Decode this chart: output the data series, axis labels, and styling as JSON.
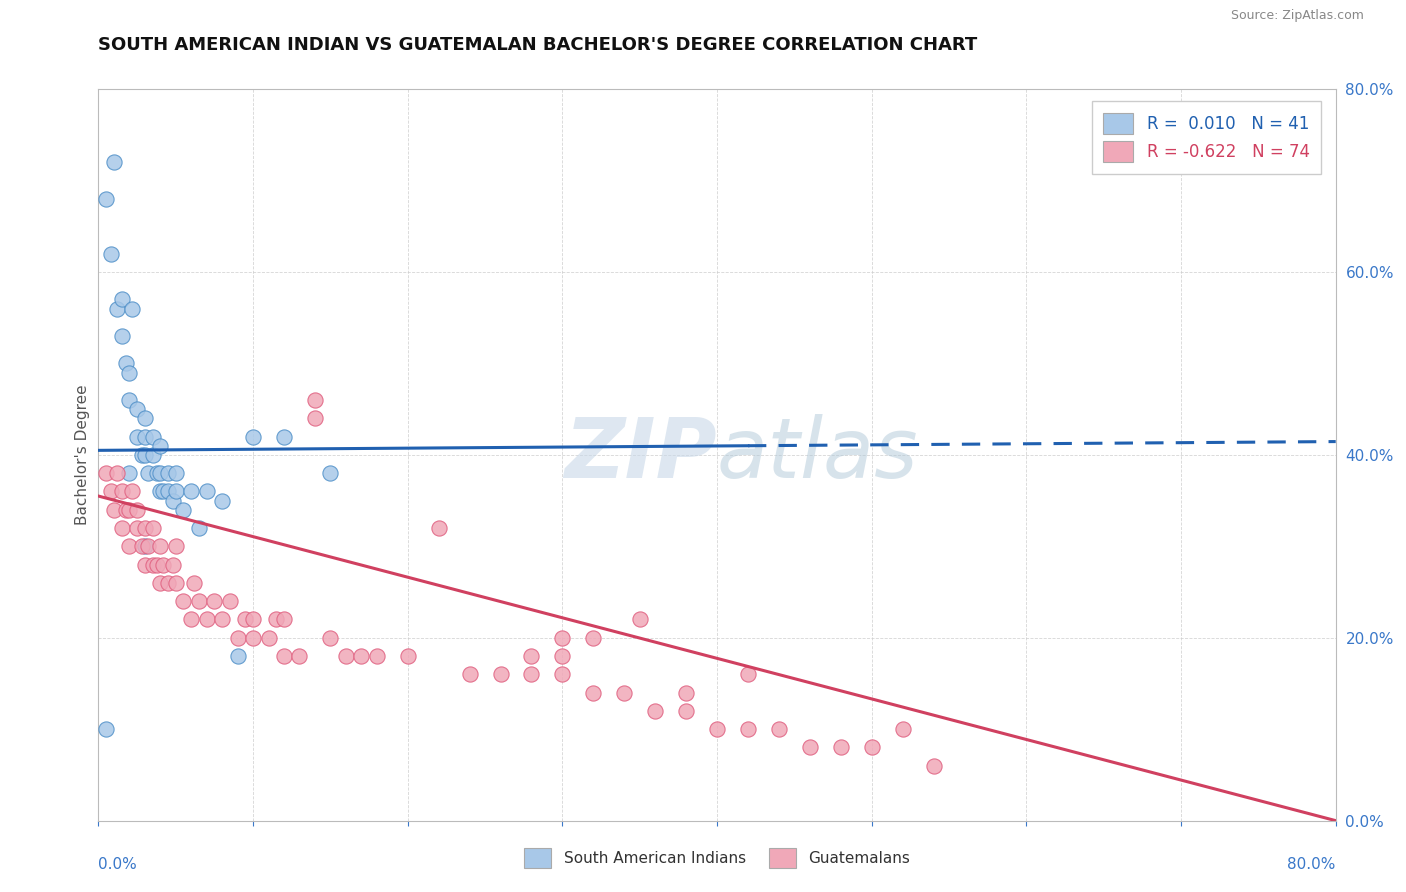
{
  "title": "SOUTH AMERICAN INDIAN VS GUATEMALAN BACHELOR'S DEGREE CORRELATION CHART",
  "source": "Source: ZipAtlas.com",
  "ylabel": "Bachelor's Degree",
  "legend_label1": "South American Indians",
  "legend_label2": "Guatemalans",
  "r1": 0.01,
  "n1": 41,
  "r2": -0.622,
  "n2": 74,
  "color_blue": "#a8c8e8",
  "color_pink": "#f0a8b8",
  "color_blue_edge": "#5090c8",
  "color_pink_edge": "#e06080",
  "color_line_blue": "#2060b0",
  "color_line_pink": "#d04060",
  "watermark_color": "#c8d8e8",
  "xlim": [
    0.0,
    0.8
  ],
  "ylim": [
    0.0,
    0.8
  ],
  "blue_line_y_start": 0.405,
  "blue_line_y_end": 0.415,
  "blue_line_solid_end": 0.42,
  "pink_line_y_start": 0.355,
  "pink_line_y_end": 0.0,
  "blue_x": [
    0.005,
    0.008,
    0.01,
    0.012,
    0.015,
    0.015,
    0.018,
    0.02,
    0.02,
    0.022,
    0.025,
    0.025,
    0.028,
    0.03,
    0.03,
    0.03,
    0.032,
    0.035,
    0.035,
    0.038,
    0.04,
    0.04,
    0.04,
    0.042,
    0.045,
    0.045,
    0.048,
    0.05,
    0.05,
    0.055,
    0.06,
    0.065,
    0.07,
    0.08,
    0.09,
    0.1,
    0.12,
    0.15,
    0.02,
    0.03,
    0.005
  ],
  "blue_y": [
    0.68,
    0.62,
    0.72,
    0.56,
    0.57,
    0.53,
    0.5,
    0.46,
    0.49,
    0.56,
    0.42,
    0.45,
    0.4,
    0.4,
    0.42,
    0.44,
    0.38,
    0.4,
    0.42,
    0.38,
    0.36,
    0.38,
    0.41,
    0.36,
    0.36,
    0.38,
    0.35,
    0.36,
    0.38,
    0.34,
    0.36,
    0.32,
    0.36,
    0.35,
    0.18,
    0.42,
    0.42,
    0.38,
    0.38,
    0.3,
    0.1
  ],
  "pink_x": [
    0.005,
    0.008,
    0.01,
    0.012,
    0.015,
    0.015,
    0.018,
    0.02,
    0.02,
    0.022,
    0.025,
    0.025,
    0.028,
    0.03,
    0.03,
    0.032,
    0.035,
    0.035,
    0.038,
    0.04,
    0.04,
    0.042,
    0.045,
    0.048,
    0.05,
    0.05,
    0.055,
    0.06,
    0.062,
    0.065,
    0.07,
    0.075,
    0.08,
    0.085,
    0.09,
    0.095,
    0.1,
    0.1,
    0.11,
    0.115,
    0.12,
    0.12,
    0.13,
    0.14,
    0.14,
    0.15,
    0.16,
    0.17,
    0.18,
    0.2,
    0.22,
    0.24,
    0.26,
    0.28,
    0.3,
    0.3,
    0.32,
    0.34,
    0.36,
    0.38,
    0.4,
    0.42,
    0.44,
    0.46,
    0.48,
    0.5,
    0.52,
    0.54,
    0.38,
    0.42,
    0.3,
    0.35,
    0.28,
    0.32
  ],
  "pink_y": [
    0.38,
    0.36,
    0.34,
    0.38,
    0.36,
    0.32,
    0.34,
    0.3,
    0.34,
    0.36,
    0.32,
    0.34,
    0.3,
    0.28,
    0.32,
    0.3,
    0.28,
    0.32,
    0.28,
    0.26,
    0.3,
    0.28,
    0.26,
    0.28,
    0.26,
    0.3,
    0.24,
    0.22,
    0.26,
    0.24,
    0.22,
    0.24,
    0.22,
    0.24,
    0.2,
    0.22,
    0.2,
    0.22,
    0.2,
    0.22,
    0.18,
    0.22,
    0.18,
    0.44,
    0.46,
    0.2,
    0.18,
    0.18,
    0.18,
    0.18,
    0.32,
    0.16,
    0.16,
    0.16,
    0.16,
    0.18,
    0.14,
    0.14,
    0.12,
    0.12,
    0.1,
    0.1,
    0.1,
    0.08,
    0.08,
    0.08,
    0.1,
    0.06,
    0.14,
    0.16,
    0.2,
    0.22,
    0.18,
    0.2
  ]
}
